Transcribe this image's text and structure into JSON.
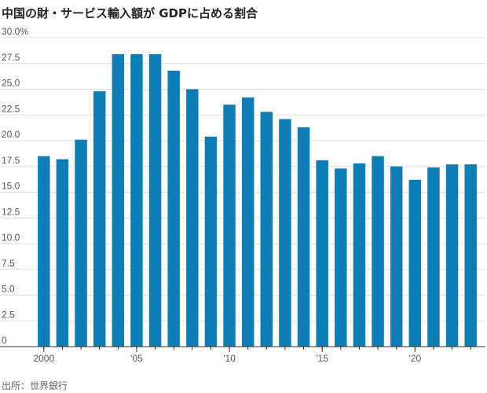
{
  "title": "中国の財・サービス輸入額が GDPに占める割合",
  "source": "出所：世界銀行",
  "chart_data": {
    "type": "bar",
    "title": "中国の財・サービス輸入額が GDPに占める割合",
    "xlabel": "",
    "ylabel": "",
    "x": [
      2000,
      2001,
      2002,
      2003,
      2004,
      2005,
      2006,
      2007,
      2008,
      2009,
      2010,
      2011,
      2012,
      2013,
      2014,
      2015,
      2016,
      2017,
      2018,
      2019,
      2020,
      2021,
      2022,
      2023
    ],
    "values": [
      18.5,
      18.2,
      20.1,
      24.8,
      28.4,
      28.4,
      28.4,
      26.8,
      25.0,
      20.4,
      23.5,
      24.2,
      22.8,
      22.1,
      21.3,
      18.1,
      17.3,
      17.8,
      18.5,
      17.5,
      16.2,
      17.4,
      17.7,
      17.7
    ],
    "ylim": [
      0,
      30
    ],
    "yticks": [
      "0",
      "2.5",
      "5.0",
      "7.5",
      "10.0",
      "12.5",
      "15.0",
      "17.5",
      "20.0",
      "22.5",
      "25.0",
      "27.5",
      "30.0%"
    ],
    "ytick_values": [
      0,
      2.5,
      5,
      7.5,
      10,
      12.5,
      15,
      17.5,
      20,
      22.5,
      25,
      27.5,
      30
    ],
    "xticks": [
      {
        "year": 2000,
        "label": "2000"
      },
      {
        "year": 2005,
        "label": "'05"
      },
      {
        "year": 2010,
        "label": "'10"
      },
      {
        "year": 2015,
        "label": "'15"
      },
      {
        "year": 2020,
        "label": "'20"
      }
    ],
    "bar_color": "#0f7db5",
    "grid": true,
    "legend": "none"
  }
}
